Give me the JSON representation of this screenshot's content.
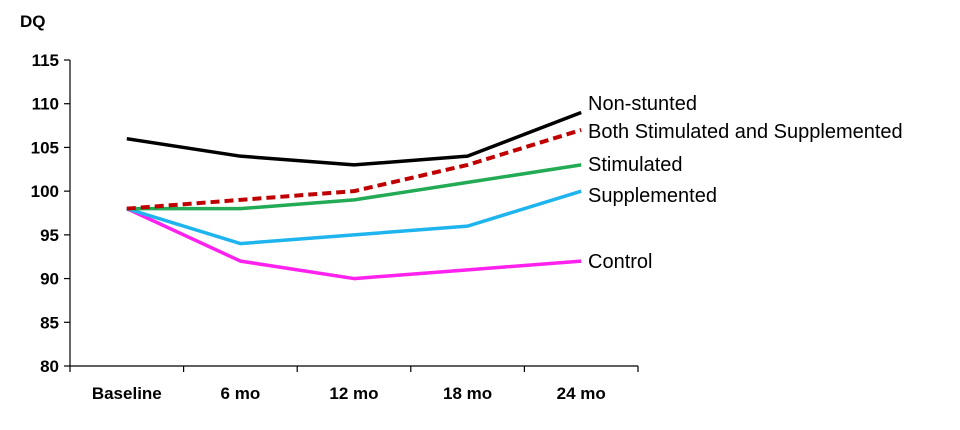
{
  "chart_data": {
    "type": "line",
    "ylabel": "DQ",
    "xlabel": "",
    "title": "",
    "categories": [
      "Baseline",
      "6 mo",
      "12 mo",
      "18 mo",
      "24 mo"
    ],
    "ylim": [
      80,
      115
    ],
    "yticks": [
      80,
      85,
      90,
      95,
      100,
      105,
      110,
      115
    ],
    "grid": false,
    "legend": "labels at line ends, right",
    "series": [
      {
        "name": "Non-stunted",
        "values": [
          106,
          104,
          103,
          104,
          109
        ],
        "color": "#000000",
        "dash": false
      },
      {
        "name": "Both Stimulated and Supplemented",
        "values": [
          98,
          99,
          100,
          103,
          107
        ],
        "color": "#c00000",
        "dash": true
      },
      {
        "name": "Stimulated",
        "values": [
          98,
          98,
          99,
          101,
          103
        ],
        "color": "#22aa55",
        "dash": false
      },
      {
        "name": "Supplemented",
        "values": [
          98,
          94,
          95,
          96,
          100
        ],
        "color": "#1eb4ee",
        "dash": false
      },
      {
        "name": "Control",
        "values": [
          98,
          92,
          90,
          91,
          92
        ],
        "color": "#ff22ee",
        "dash": false
      }
    ]
  }
}
